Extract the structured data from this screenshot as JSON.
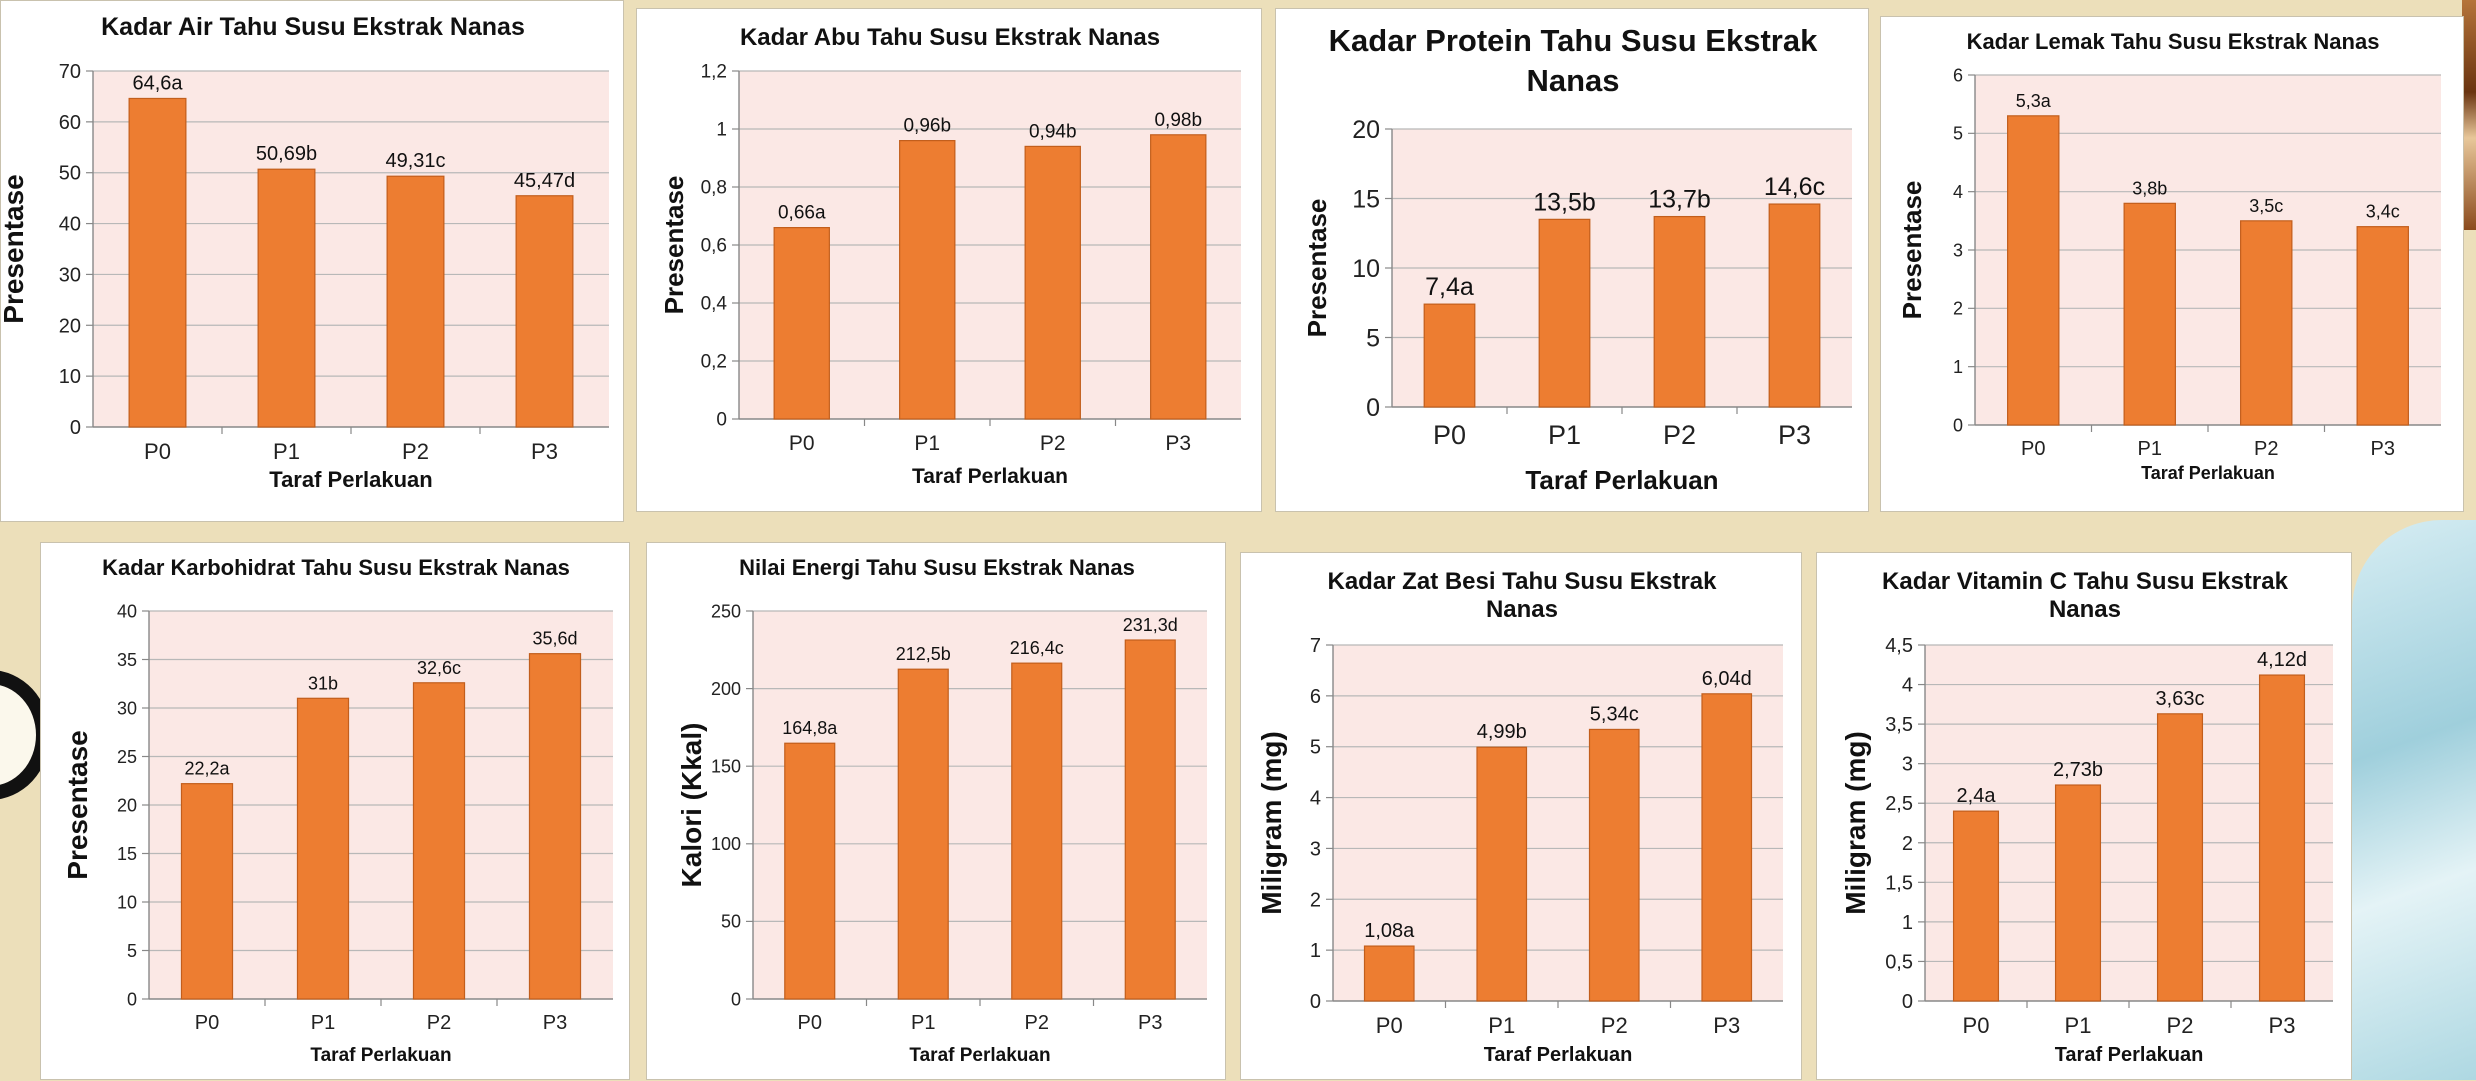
{
  "theme": {
    "bar_color": "#ed7d31",
    "bar_edge": "#c25e1c",
    "plot_bg": "#fbe8e5",
    "grid": "#b8b8b8"
  },
  "chart_data": [
    {
      "type": "bar",
      "title": "Kadar Air  Tahu Susu Ekstrak Nanas",
      "xlabel": "Taraf Perlakuan",
      "ylabel": "Presentase",
      "categories": [
        "P0",
        "P1",
        "P2",
        "P3"
      ],
      "values": [
        64.6,
        50.69,
        49.31,
        45.47
      ],
      "data_labels": [
        "64,6a",
        "50,69b",
        "49,31c",
        "45,47d"
      ],
      "ylim": [
        0,
        70
      ],
      "yticks": [
        "0",
        "10",
        "20",
        "30",
        "40",
        "50",
        "60",
        "70"
      ],
      "grid": true
    },
    {
      "type": "bar",
      "title": "Kadar Abu Tahu Susu Ekstrak Nanas",
      "xlabel": "Taraf Perlakuan",
      "ylabel": "Presentase",
      "categories": [
        "P0",
        "P1",
        "P2",
        "P3"
      ],
      "values": [
        0.66,
        0.96,
        0.94,
        0.98
      ],
      "data_labels": [
        "0,66a",
        "0,96b",
        "0,94b",
        "0,98b"
      ],
      "ylim": [
        0,
        1.2
      ],
      "yticks": [
        "0",
        "0,2",
        "0,4",
        "0,6",
        "0,8",
        "1",
        "1,2"
      ],
      "grid": true
    },
    {
      "type": "bar",
      "title": "Kadar Protein Tahu Susu Ekstrak Nanas",
      "xlabel": "Taraf Perlakuan",
      "ylabel": "Presentase",
      "categories": [
        "P0",
        "P1",
        "P2",
        "P3"
      ],
      "values": [
        7.4,
        13.5,
        13.7,
        14.6
      ],
      "data_labels": [
        "7,4a",
        "13,5b",
        "13,7b",
        "14,6c"
      ],
      "ylim": [
        0,
        20
      ],
      "yticks": [
        "0",
        "5",
        "10",
        "15",
        "20"
      ],
      "grid": true
    },
    {
      "type": "bar",
      "title": "Kadar Lemak Tahu Susu Ekstrak Nanas",
      "xlabel": "Taraf Perlakuan",
      "ylabel": "Presentase",
      "categories": [
        "P0",
        "P1",
        "P2",
        "P3"
      ],
      "values": [
        5.3,
        3.8,
        3.5,
        3.4
      ],
      "data_labels": [
        "5,3a",
        "3,8b",
        "3,5c",
        "3,4c"
      ],
      "ylim": [
        0,
        6
      ],
      "yticks": [
        "0",
        "1",
        "2",
        "3",
        "4",
        "5",
        "6"
      ],
      "grid": true
    },
    {
      "type": "bar",
      "title": "Kadar Karbohidrat Tahu Susu Ekstrak Nanas",
      "xlabel": "Taraf Perlakuan",
      "ylabel": "Presentase",
      "categories": [
        "P0",
        "P1",
        "P2",
        "P3"
      ],
      "values": [
        22.2,
        31,
        32.6,
        35.6
      ],
      "data_labels": [
        "22,2a",
        "31b",
        "32,6c",
        "35,6d"
      ],
      "ylim": [
        0,
        40
      ],
      "yticks": [
        "0",
        "5",
        "10",
        "15",
        "20",
        "25",
        "30",
        "35",
        "40"
      ],
      "grid": true
    },
    {
      "type": "bar",
      "title": "Nilai Energi Tahu Susu Ekstrak Nanas",
      "xlabel": "Taraf Perlakuan",
      "ylabel": "Kalori (Kkal)",
      "categories": [
        "P0",
        "P1",
        "P2",
        "P3"
      ],
      "values": [
        164.8,
        212.5,
        216.4,
        231.3
      ],
      "data_labels": [
        "164,8a",
        "212,5b",
        "216,4c",
        "231,3d"
      ],
      "ylim": [
        0,
        250
      ],
      "yticks": [
        "0",
        "50",
        "100",
        "150",
        "200",
        "250"
      ],
      "grid": true
    },
    {
      "type": "bar",
      "title": "Kadar Zat Besi Tahu Susu Ekstrak Nanas",
      "xlabel": "Taraf Perlakuan",
      "ylabel": "Miligram (mg)",
      "categories": [
        "P0",
        "P1",
        "P2",
        "P3"
      ],
      "values": [
        1.08,
        4.99,
        5.34,
        6.04
      ],
      "data_labels": [
        "1,08a",
        "4,99b",
        "5,34c",
        "6,04d"
      ],
      "ylim": [
        0,
        7
      ],
      "yticks": [
        "0",
        "1",
        "2",
        "3",
        "4",
        "5",
        "6",
        "7"
      ],
      "grid": true
    },
    {
      "type": "bar",
      "title": "Kadar Vitamin C Tahu Susu Ekstrak Nanas",
      "xlabel": "Taraf Perlakuan",
      "ylabel": "Miligram (mg)",
      "categories": [
        "P0",
        "P1",
        "P2",
        "P3"
      ],
      "values": [
        2.4,
        2.73,
        3.63,
        4.12
      ],
      "data_labels": [
        "2,4a",
        "2,73b",
        "3,63c",
        "4,12d"
      ],
      "ylim": [
        0,
        4.5
      ],
      "yticks": [
        "0",
        "0,5",
        "1",
        "1,5",
        "2",
        "2,5",
        "3",
        "3,5",
        "4",
        "4,5"
      ],
      "grid": true
    }
  ]
}
